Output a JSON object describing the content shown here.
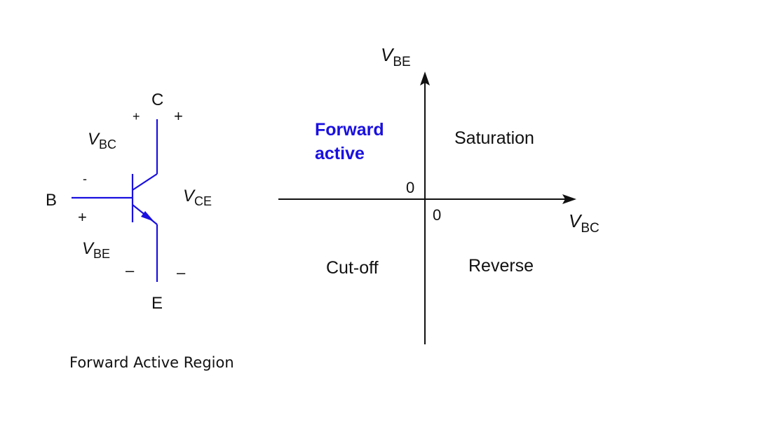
{
  "colors": {
    "transistor": "#1a10e0",
    "forward_active": "#1a10e0",
    "text": "#111111",
    "axes": "#111111"
  },
  "transistor": {
    "collector": "C",
    "base": "B",
    "emitter": "E",
    "vbc_top_plus": "+",
    "vbc_minus": "-",
    "vbe_plus": "+",
    "vce_top_plus": "+",
    "vbe_bottom_minus": "–",
    "vce_bottom_minus": "–",
    "v_sym": "V",
    "vbc_sub": "BC",
    "vce_sub": "CE",
    "vbe_sub": "BE"
  },
  "caption": "Forward Active Region",
  "regions": {
    "x_axis_sym": "V",
    "x_axis_sub": "BC",
    "y_axis_sym": "V",
    "y_axis_sub": "BE",
    "y_zero": "0",
    "x_zero": "0",
    "forward_active_line1": "Forward",
    "forward_active_line2": "active",
    "saturation": "Saturation",
    "cutoff": "Cut-off",
    "reverse": "Reverse"
  }
}
